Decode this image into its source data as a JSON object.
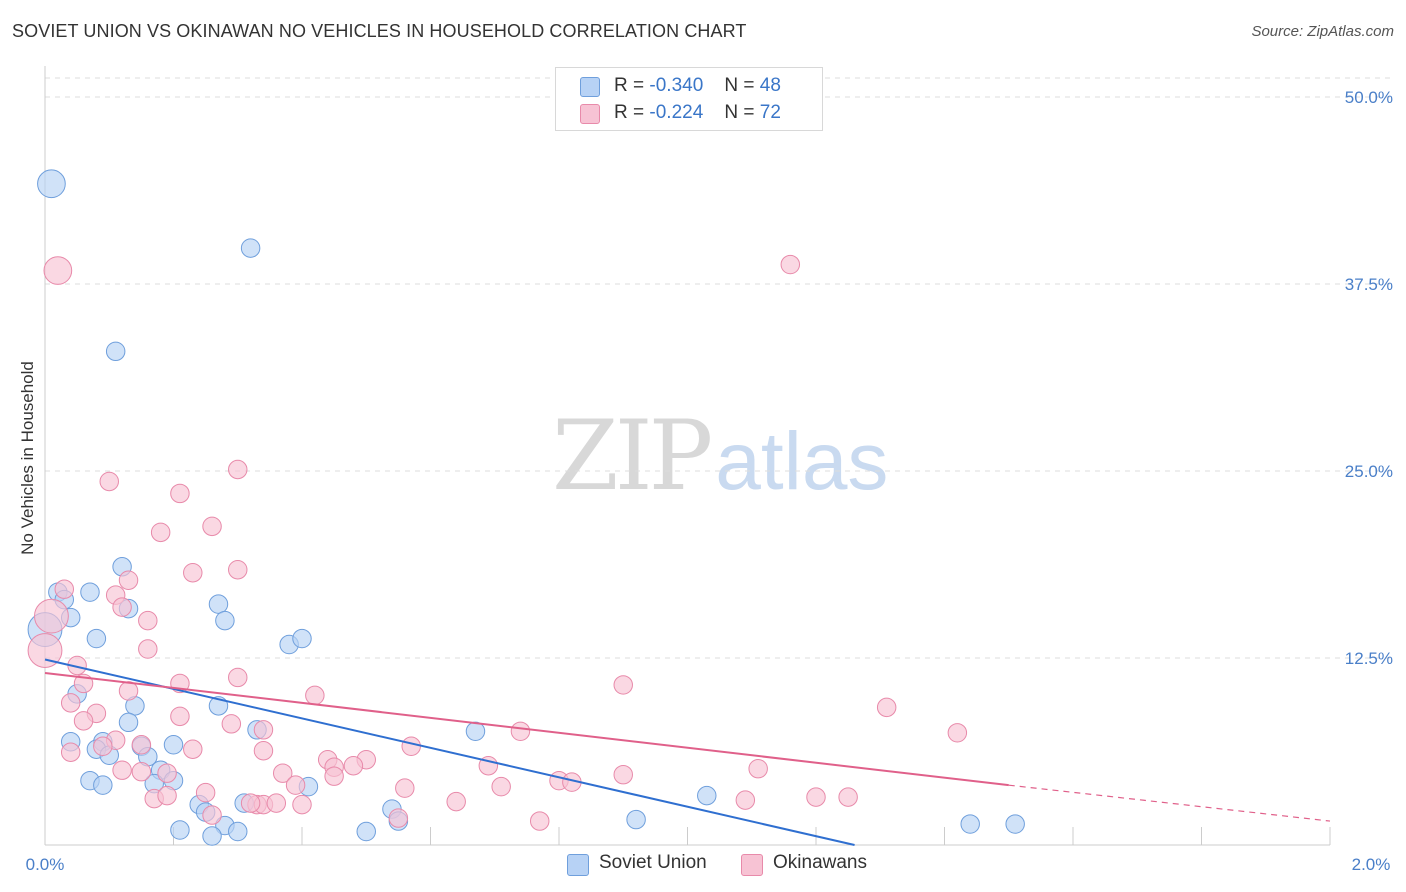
{
  "title": "SOVIET UNION VS OKINAWAN NO VEHICLES IN HOUSEHOLD CORRELATION CHART",
  "source": "Source: ZipAtlas.com",
  "watermark": {
    "zip": "ZIP",
    "atlas": "atlas"
  },
  "legend": {
    "rows": [
      {
        "r_label": "R =",
        "r_value": "-0.340",
        "n_label": "N =",
        "n_value": "48"
      },
      {
        "r_label": "R =",
        "r_value": "-0.224",
        "n_label": "N =",
        "n_value": "72"
      }
    ],
    "bottom": [
      "Soviet Union",
      "Okinawans"
    ]
  },
  "colors": {
    "soviet_fill": "#b7d2f5",
    "soviet_stroke": "#6f9fdc",
    "soviet_line": "#2f6fd0",
    "okinawan_fill": "#f7c3d4",
    "okinawan_stroke": "#e88aaa",
    "okinawan_line": "#e0608a",
    "tick_text": "#4a7fc8",
    "grid": "#dddddd"
  },
  "chart_data": {
    "type": "scatter",
    "title": "SOVIET UNION VS OKINAWAN NO VEHICLES IN HOUSEHOLD CORRELATION CHART",
    "xlabel": "",
    "ylabel": "No Vehicles in Household",
    "xlim": [
      0,
      2.0
    ],
    "ylim": [
      0,
      52
    ],
    "x_tick_labels": [
      "0.0%",
      "2.0%"
    ],
    "y_ticks": [
      12.5,
      25.0,
      37.5,
      50.0
    ],
    "y_tick_labels": [
      "12.5%",
      "25.0%",
      "37.5%",
      "50.0%"
    ],
    "grid": true,
    "series": [
      {
        "name": "Soviet Union",
        "r": -0.34,
        "n": 48,
        "trend": {
          "x": [
            0.0,
            1.26
          ],
          "y": [
            12.4,
            0.0
          ]
        },
        "points": [
          [
            0.01,
            44.2,
            18
          ],
          [
            0.32,
            39.9,
            12
          ],
          [
            0.11,
            33.0,
            12
          ],
          [
            0.12,
            18.6,
            12
          ],
          [
            0.02,
            16.9,
            12
          ],
          [
            0.07,
            16.9,
            12
          ],
          [
            0.03,
            16.4,
            12
          ],
          [
            0.13,
            15.8,
            12
          ],
          [
            0.27,
            16.1,
            12
          ],
          [
            0.04,
            15.2,
            12
          ],
          [
            0.28,
            15.0,
            12
          ],
          [
            0.0,
            14.4,
            22
          ],
          [
            0.08,
            13.8,
            12
          ],
          [
            0.38,
            13.4,
            12
          ],
          [
            0.4,
            13.8,
            12
          ],
          [
            0.05,
            10.1,
            12
          ],
          [
            0.14,
            9.3,
            12
          ],
          [
            0.27,
            9.3,
            12
          ],
          [
            0.13,
            8.2,
            12
          ],
          [
            0.33,
            7.7,
            12
          ],
          [
            0.67,
            7.6,
            12
          ],
          [
            0.04,
            6.9,
            12
          ],
          [
            0.09,
            6.9,
            12
          ],
          [
            0.15,
            6.6,
            12
          ],
          [
            0.2,
            6.7,
            12
          ],
          [
            0.08,
            6.4,
            12
          ],
          [
            0.1,
            6.0,
            12
          ],
          [
            0.16,
            5.9,
            12
          ],
          [
            0.18,
            5.0,
            12
          ],
          [
            0.07,
            4.3,
            12
          ],
          [
            0.09,
            4.0,
            12
          ],
          [
            0.17,
            4.1,
            12
          ],
          [
            0.2,
            4.3,
            12
          ],
          [
            0.41,
            3.9,
            12
          ],
          [
            1.03,
            3.3,
            12
          ],
          [
            0.24,
            2.7,
            12
          ],
          [
            0.31,
            2.8,
            12
          ],
          [
            0.54,
            2.4,
            12
          ],
          [
            0.25,
            2.2,
            12
          ],
          [
            0.55,
            1.6,
            12
          ],
          [
            0.92,
            1.7,
            12
          ],
          [
            0.28,
            1.3,
            12
          ],
          [
            1.44,
            1.4,
            12
          ],
          [
            1.51,
            1.4,
            12
          ],
          [
            0.21,
            1.0,
            12
          ],
          [
            0.3,
            0.9,
            12
          ],
          [
            0.5,
            0.9,
            12
          ],
          [
            0.26,
            0.6,
            12
          ]
        ]
      },
      {
        "name": "Okinawans",
        "r": -0.224,
        "n": 72,
        "trend": {
          "x": [
            0.0,
            1.5
          ],
          "y": [
            11.5,
            4.0
          ]
        },
        "trend_dashed": {
          "x": [
            1.5,
            2.0
          ],
          "y": [
            4.0,
            1.6
          ]
        },
        "points": [
          [
            0.02,
            38.4,
            18
          ],
          [
            1.16,
            38.8,
            12
          ],
          [
            0.3,
            25.1,
            12
          ],
          [
            0.1,
            24.3,
            12
          ],
          [
            0.21,
            23.5,
            12
          ],
          [
            0.26,
            21.3,
            12
          ],
          [
            0.18,
            20.9,
            12
          ],
          [
            0.23,
            18.2,
            12
          ],
          [
            0.3,
            18.4,
            12
          ],
          [
            0.13,
            17.7,
            12
          ],
          [
            0.03,
            17.1,
            12
          ],
          [
            0.11,
            16.7,
            12
          ],
          [
            0.12,
            15.9,
            12
          ],
          [
            0.16,
            15.0,
            12
          ],
          [
            0.01,
            15.3,
            22
          ],
          [
            0.16,
            13.1,
            12
          ],
          [
            0.0,
            13.0,
            22
          ],
          [
            0.05,
            12.0,
            12
          ],
          [
            0.3,
            11.2,
            12
          ],
          [
            0.21,
            10.8,
            12
          ],
          [
            0.06,
            10.8,
            12
          ],
          [
            0.9,
            10.7,
            12
          ],
          [
            0.13,
            10.3,
            12
          ],
          [
            0.42,
            10.0,
            12
          ],
          [
            0.04,
            9.5,
            12
          ],
          [
            1.31,
            9.2,
            12
          ],
          [
            0.08,
            8.8,
            12
          ],
          [
            0.21,
            8.6,
            12
          ],
          [
            0.06,
            8.3,
            12
          ],
          [
            0.29,
            8.1,
            12
          ],
          [
            0.34,
            7.7,
            12
          ],
          [
            0.74,
            7.6,
            12
          ],
          [
            1.42,
            7.5,
            12
          ],
          [
            0.11,
            7.0,
            12
          ],
          [
            0.15,
            6.7,
            12
          ],
          [
            0.09,
            6.6,
            12
          ],
          [
            0.23,
            6.4,
            12
          ],
          [
            0.34,
            6.3,
            12
          ],
          [
            0.57,
            6.6,
            12
          ],
          [
            0.04,
            6.2,
            12
          ],
          [
            0.44,
            5.7,
            12
          ],
          [
            0.5,
            5.7,
            12
          ],
          [
            0.45,
            5.2,
            12
          ],
          [
            0.48,
            5.3,
            12
          ],
          [
            0.69,
            5.3,
            12
          ],
          [
            1.11,
            5.1,
            12
          ],
          [
            0.12,
            5.0,
            12
          ],
          [
            0.15,
            4.9,
            12
          ],
          [
            0.19,
            4.8,
            12
          ],
          [
            0.37,
            4.8,
            12
          ],
          [
            0.45,
            4.6,
            12
          ],
          [
            0.9,
            4.7,
            12
          ],
          [
            0.8,
            4.3,
            12
          ],
          [
            0.82,
            4.2,
            12
          ],
          [
            0.39,
            4.0,
            12
          ],
          [
            0.56,
            3.8,
            12
          ],
          [
            0.71,
            3.9,
            12
          ],
          [
            0.25,
            3.5,
            12
          ],
          [
            0.17,
            3.1,
            12
          ],
          [
            0.19,
            3.3,
            12
          ],
          [
            0.64,
            2.9,
            12
          ],
          [
            1.09,
            3.0,
            12
          ],
          [
            1.2,
            3.2,
            12
          ],
          [
            1.25,
            3.2,
            12
          ],
          [
            0.33,
            2.7,
            12
          ],
          [
            0.34,
            2.7,
            12
          ],
          [
            0.36,
            2.8,
            12
          ],
          [
            0.4,
            2.7,
            12
          ],
          [
            0.26,
            2.0,
            12
          ],
          [
            0.55,
            1.8,
            12
          ],
          [
            0.77,
            1.6,
            12
          ],
          [
            0.32,
            2.8,
            12
          ]
        ]
      }
    ]
  }
}
